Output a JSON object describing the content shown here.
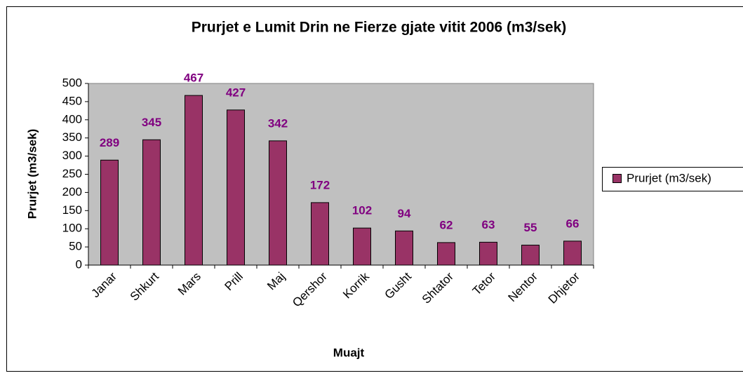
{
  "chart_data": {
    "type": "bar",
    "title": "Prurjet e Lumit Drin ne Fierze gjate vitit 2006 (m3/sek)",
    "x_label": "Muajt",
    "y_label": "Prurjet (m3/sek)",
    "categories": [
      "Janar",
      "Shkurt",
      "Mars",
      "Prill",
      "Maj",
      "Qershor",
      "Korrik",
      "Gusht",
      "Shtator",
      "Tetor",
      "Nentor",
      "Dhjetor"
    ],
    "series": [
      {
        "name": "Prurjet (m3/sek)",
        "color": "#993366",
        "values": [
          289,
          345,
          467,
          427,
          342,
          172,
          102,
          94,
          62,
          63,
          55,
          66
        ]
      }
    ],
    "ylim": [
      0,
      500
    ],
    "yticks": [
      0,
      50,
      100,
      150,
      200,
      250,
      300,
      350,
      400,
      450,
      500
    ],
    "grid": false,
    "legend": "right",
    "plot_background": "#c0c0c0",
    "label_color": "#800080"
  }
}
